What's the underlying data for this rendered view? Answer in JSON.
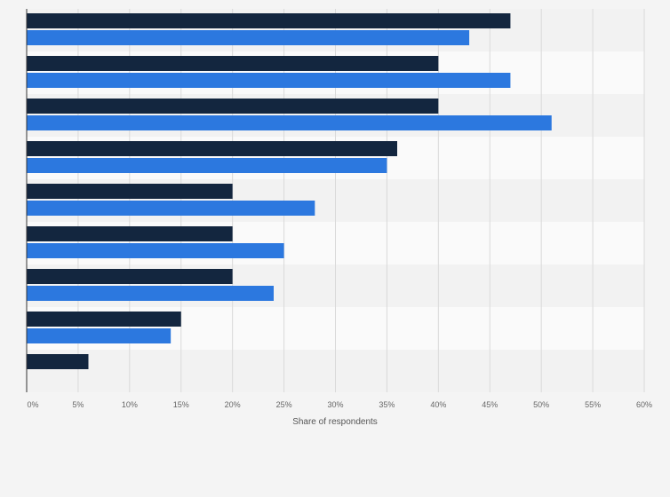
{
  "chart_data": {
    "type": "bar",
    "orientation": "horizontal",
    "title": "",
    "xlabel": "Share of respondents",
    "ylabel": "",
    "xlim": [
      0,
      60
    ],
    "x_ticks": [
      "0%",
      "5%",
      "10%",
      "15%",
      "20%",
      "25%",
      "30%",
      "35%",
      "40%",
      "45%",
      "50%",
      "55%",
      "60%"
    ],
    "grid": true,
    "legend": "none",
    "categories": [
      "",
      "",
      "",
      "",
      "",
      "",
      "",
      "",
      ""
    ],
    "series": [
      {
        "color": "#13263f",
        "values": [
          47,
          40,
          40,
          36,
          20,
          20,
          20,
          15,
          6
        ]
      },
      {
        "color": "#2c78df",
        "values": [
          43,
          47,
          51,
          35,
          28,
          25,
          24,
          14,
          null
        ]
      }
    ]
  }
}
